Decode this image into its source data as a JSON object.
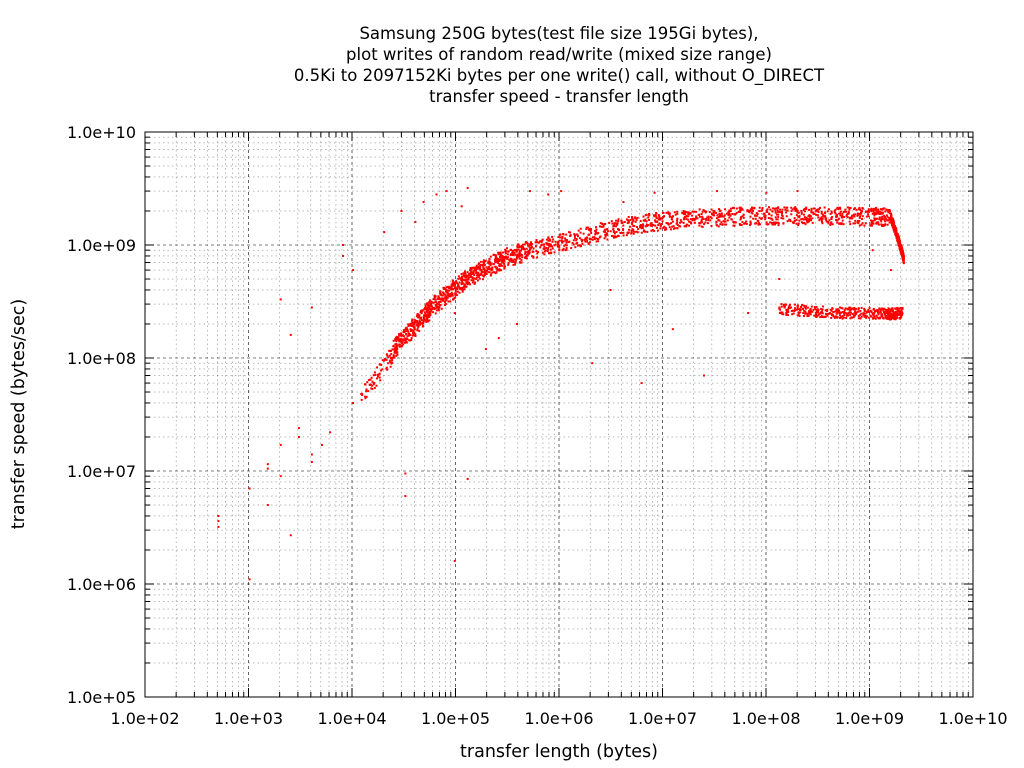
{
  "chart_data": {
    "type": "scatter",
    "title": [
      "Samsung 250G bytes(test file size 195Gi bytes),",
      "plot writes of random read/write (mixed size range)",
      "0.5Ki to 2097152Ki bytes per one write() call, without O_DIRECT",
      "transfer speed - transfer length"
    ],
    "xlabel": "transfer length (bytes)",
    "ylabel": "transfer speed (bytes/sec)",
    "x_scale": "log",
    "y_scale": "log",
    "xlim": [
      100,
      10000000000
    ],
    "ylim": [
      100000,
      10000000000
    ],
    "grid": true,
    "x_ticks": [
      "1.0e+02",
      "1.0e+03",
      "1.0e+04",
      "1.0e+05",
      "1.0e+06",
      "1.0e+07",
      "1.0e+08",
      "1.0e+09",
      "1.0e+10"
    ],
    "y_ticks": [
      "1.0e+05",
      "1.0e+06",
      "1.0e+07",
      "1.0e+08",
      "1.0e+09",
      "1.0e+10"
    ],
    "series": [
      {
        "color": "#ff0000",
        "points": [
          [
            512,
            3200000
          ],
          [
            512,
            3600000
          ],
          [
            512,
            4000000
          ],
          [
            1024,
            1100000
          ],
          [
            1024,
            7000000
          ],
          [
            1536,
            5000000
          ],
          [
            1536,
            10500000
          ],
          [
            1536,
            11500000
          ],
          [
            2048,
            330000000
          ],
          [
            2048,
            9000000
          ],
          [
            2048,
            17000000
          ],
          [
            2560,
            2700000
          ],
          [
            2560,
            160000000
          ],
          [
            3072,
            20000000
          ],
          [
            3072,
            24000000
          ],
          [
            4096,
            12000000
          ],
          [
            4096,
            14000000
          ],
          [
            4096,
            280000000
          ],
          [
            5120,
            17000000
          ],
          [
            6144,
            22000000
          ],
          [
            8192,
            1000000000
          ],
          [
            8192,
            800000000
          ],
          [
            10240,
            40000000
          ],
          [
            10240,
            600000000
          ],
          [
            12288,
            48000000
          ],
          [
            16384,
            60000000
          ],
          [
            20480,
            1300000000
          ],
          [
            24576,
            100000000
          ],
          [
            30000,
            2000000000
          ],
          [
            32768,
            6000000
          ],
          [
            32768,
            9500000
          ],
          [
            36864,
            200000000
          ],
          [
            40960,
            1600000000
          ],
          [
            49152,
            2400000000
          ],
          [
            65536,
            2800000000
          ],
          [
            81920,
            3000000000
          ],
          [
            98304,
            1600000
          ],
          [
            98304,
            250000000
          ],
          [
            114688,
            2200000000
          ],
          [
            131072,
            8500000
          ],
          [
            131072,
            3200000000
          ],
          [
            196608,
            120000000
          ],
          [
            262144,
            150000000
          ],
          [
            393216,
            200000000
          ],
          [
            524288,
            3000000000
          ],
          [
            786432,
            2800000000
          ],
          [
            1048576,
            3000000000
          ],
          [
            2097152,
            90000000
          ],
          [
            3145728,
            400000000
          ],
          [
            4194304,
            2400000000
          ],
          [
            6291456,
            60000000
          ],
          [
            8388608,
            2900000000
          ],
          [
            12582912,
            180000000
          ],
          [
            25165824,
            70000000
          ],
          [
            33554432,
            3000000000
          ],
          [
            67108864,
            250000000
          ],
          [
            100663296,
            2900000000
          ],
          [
            134217728,
            500000000
          ],
          [
            201326592,
            3000000000
          ],
          [
            268435456,
            250000000
          ],
          [
            536870912,
            230000000
          ],
          [
            1073741824,
            900000000
          ],
          [
            1610612736,
            600000000
          ],
          [
            2147483648,
            750000000
          ]
        ]
      }
    ],
    "trends": [
      {
        "name": "",
        "x": [
          12288,
          32768,
          65536,
          131072,
          262144,
          524288,
          1048576,
          2097152,
          4194304,
          8388608,
          16777216,
          33554432,
          67108864,
          134217728,
          268435456,
          536870912,
          1073741824,
          1610612736
        ],
        "y": [
          45000000,
          150000000,
          300000000,
          500000000,
          700000000,
          900000000,
          1050000000,
          1250000000,
          1450000000,
          1600000000,
          1700000000,
          1750000000,
          1800000000,
          1800000000,
          1800000000,
          1800000000,
          1780000000,
          1750000000
        ],
        "spread_decades": 0.08
      },
      {
        "name": "",
        "x": [
          24576,
          40960,
          65536,
          131072,
          262144,
          524288
        ],
        "y": [
          120000000,
          200000000,
          320000000,
          520000000,
          750000000,
          950000000
        ],
        "spread_decades": 0.07
      },
      {
        "name": "",
        "x": [
          134217728,
          268435456,
          536870912,
          1073741824,
          1610612736,
          2097152000
        ],
        "y": [
          270000000,
          260000000,
          250000000,
          250000000,
          245000000,
          250000000
        ],
        "spread_decades": 0.05
      },
      {
        "name": "",
        "x": [
          1610612736,
          1800000000,
          2000000000,
          2147483648
        ],
        "y": [
          1750000000,
          1300000000,
          950000000,
          750000000
        ],
        "spread_decades": 0.04
      }
    ]
  }
}
